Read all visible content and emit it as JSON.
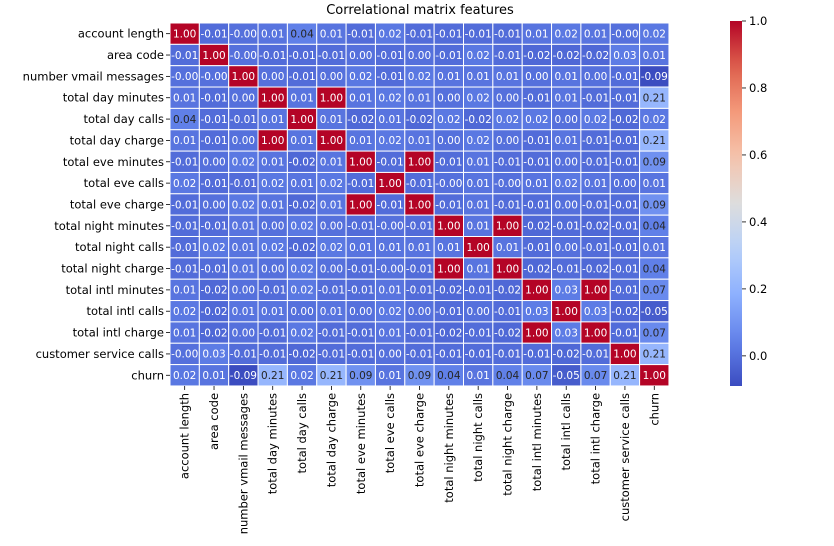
{
  "chart_data": {
    "type": "heatmap",
    "title": "Correlational matrix features",
    "labels": [
      "account length",
      "area code",
      "number vmail messages",
      "total day minutes",
      "total day calls",
      "total day charge",
      "total eve minutes",
      "total eve calls",
      "total eve charge",
      "total night minutes",
      "total night calls",
      "total night charge",
      "total intl minutes",
      "total intl calls",
      "total intl charge",
      "customer service calls",
      "churn"
    ],
    "values": [
      [
        1.0,
        -0.01,
        -0.0,
        0.01,
        0.04,
        0.01,
        -0.01,
        0.02,
        -0.01,
        -0.01,
        -0.01,
        -0.01,
        0.01,
        0.02,
        0.01,
        -0.0,
        0.02
      ],
      [
        -0.01,
        1.0,
        -0.0,
        -0.01,
        -0.01,
        -0.01,
        0.0,
        -0.01,
        0.0,
        -0.01,
        0.02,
        -0.01,
        -0.02,
        -0.02,
        -0.02,
        0.03,
        0.01
      ],
      [
        -0.0,
        -0.0,
        1.0,
        0.0,
        -0.01,
        0.0,
        0.02,
        -0.01,
        0.02,
        0.01,
        0.01,
        0.01,
        0.0,
        0.01,
        0.0,
        -0.01,
        -0.09
      ],
      [
        0.01,
        -0.01,
        0.0,
        1.0,
        0.01,
        1.0,
        0.01,
        0.02,
        0.01,
        0.0,
        0.02,
        0.0,
        -0.01,
        0.01,
        -0.01,
        -0.01,
        0.21
      ],
      [
        0.04,
        -0.01,
        -0.01,
        0.01,
        1.0,
        0.01,
        -0.02,
        0.01,
        -0.02,
        0.02,
        -0.02,
        0.02,
        0.02,
        0.0,
        0.02,
        -0.02,
        0.02
      ],
      [
        0.01,
        -0.01,
        0.0,
        1.0,
        0.01,
        1.0,
        0.01,
        0.02,
        0.01,
        0.0,
        0.02,
        0.0,
        -0.01,
        0.01,
        -0.01,
        -0.01,
        0.21
      ],
      [
        -0.01,
        0.0,
        0.02,
        0.01,
        -0.02,
        0.01,
        1.0,
        -0.01,
        1.0,
        -0.01,
        0.01,
        -0.01,
        -0.01,
        0.0,
        -0.01,
        -0.01,
        0.09
      ],
      [
        0.02,
        -0.01,
        -0.01,
        0.02,
        0.01,
        0.02,
        -0.01,
        1.0,
        -0.01,
        -0.0,
        0.01,
        -0.0,
        0.01,
        0.02,
        0.01,
        0.0,
        0.01
      ],
      [
        -0.01,
        0.0,
        0.02,
        0.01,
        -0.02,
        0.01,
        1.0,
        -0.01,
        1.0,
        -0.01,
        0.01,
        -0.01,
        -0.01,
        0.0,
        -0.01,
        -0.01,
        0.09
      ],
      [
        -0.01,
        -0.01,
        0.01,
        0.0,
        0.02,
        0.0,
        -0.01,
        -0.0,
        -0.01,
        1.0,
        0.01,
        1.0,
        -0.02,
        -0.01,
        -0.02,
        -0.01,
        0.04
      ],
      [
        -0.01,
        0.02,
        0.01,
        0.02,
        -0.02,
        0.02,
        0.01,
        0.01,
        0.01,
        0.01,
        1.0,
        0.01,
        -0.01,
        0.0,
        -0.01,
        -0.01,
        0.01
      ],
      [
        -0.01,
        -0.01,
        0.01,
        0.0,
        0.02,
        0.0,
        -0.01,
        -0.0,
        -0.01,
        1.0,
        0.01,
        1.0,
        -0.02,
        -0.01,
        -0.02,
        -0.01,
        0.04
      ],
      [
        0.01,
        -0.02,
        0.0,
        -0.01,
        0.02,
        -0.01,
        -0.01,
        0.01,
        -0.01,
        -0.02,
        -0.01,
        -0.02,
        1.0,
        0.03,
        1.0,
        -0.01,
        0.07
      ],
      [
        0.02,
        -0.02,
        0.01,
        0.01,
        0.0,
        0.01,
        0.0,
        0.02,
        0.0,
        -0.01,
        0.0,
        -0.01,
        0.03,
        1.0,
        0.03,
        -0.02,
        -0.05
      ],
      [
        0.01,
        -0.02,
        0.0,
        -0.01,
        0.02,
        -0.01,
        -0.01,
        0.01,
        -0.01,
        -0.02,
        -0.01,
        -0.02,
        1.0,
        0.03,
        1.0,
        -0.01,
        0.07
      ],
      [
        -0.0,
        0.03,
        -0.01,
        -0.01,
        -0.02,
        -0.01,
        -0.01,
        0.0,
        -0.01,
        -0.01,
        -0.01,
        -0.01,
        -0.01,
        -0.02,
        -0.01,
        1.0,
        0.21
      ],
      [
        0.02,
        0.01,
        -0.09,
        0.21,
        0.02,
        0.21,
        0.09,
        0.01,
        0.09,
        0.04,
        0.01,
        0.04,
        0.07,
        -0.05,
        0.07,
        0.21,
        1.0
      ]
    ],
    "vmin": -0.09,
    "vmax": 1.0,
    "colormap": "coolwarm",
    "colorbar_ticks": [
      0.0,
      0.2,
      0.4,
      0.6,
      0.8,
      1.0
    ],
    "colorbar_tick_labels": [
      "0.0",
      "0.2",
      "0.4",
      "0.6",
      "0.8",
      "1.0"
    ],
    "grid": "white cell borders",
    "annotated": true
  }
}
